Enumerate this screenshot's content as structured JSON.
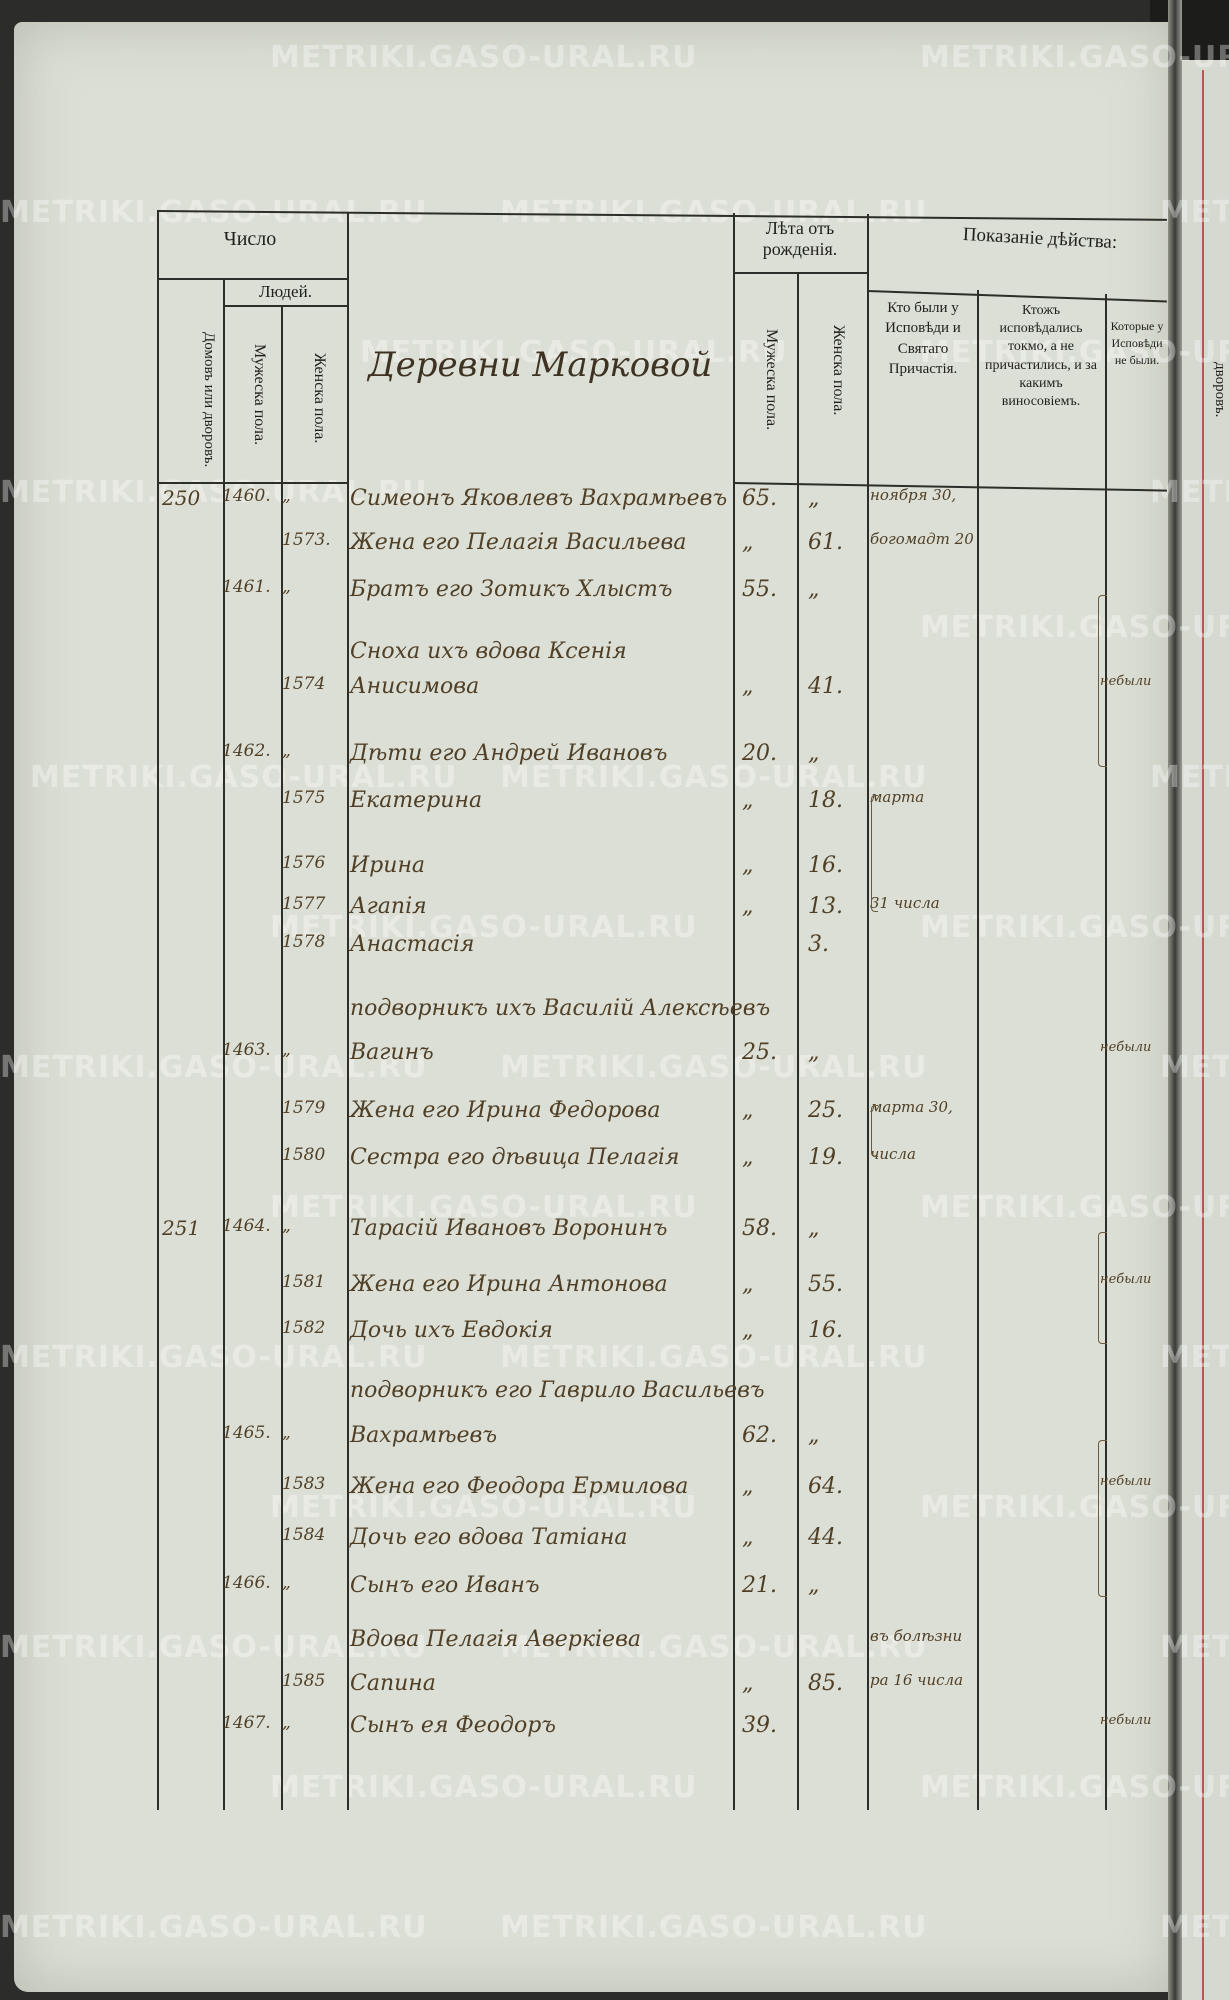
{
  "watermark": "METRIKI.GASO-URAL.RU",
  "header": {
    "chislo": "Число",
    "lyudey": "Людей.",
    "domov": "Домовъ или дворовъ.",
    "muzheska_pola_num": "Мужеска пола.",
    "zhenska_pola_num": "Женска пола.",
    "village": "Деревни Марковой",
    "leta": "Лѣта отъ рожденія.",
    "muzheska_pola_age": "Мужеска пола.",
    "zhenska_pola_age": "Женска пола.",
    "pokazanie": "Показаніе дѣйства:",
    "col_confessed": "Кто были у Исповѣди и Святаго Причастія.",
    "col_confessed_only": "Ктожъ исповѣдались токмо, а не причастились, и за какимъ виносовіемъ.",
    "col_absent": "Которые у Исповѣди не были.",
    "next_page": "дворовъ."
  },
  "rows": [
    {
      "dom": "250",
      "m": "1460.",
      "f": "„",
      "name": "Симеонъ Яковлевъ Вахрамѣевъ",
      "ma": "65.",
      "fa": "„",
      "c1": "ноября 30,",
      "c3": ""
    },
    {
      "dom": "",
      "m": "",
      "f": "1573.",
      "name": "Жена его Пелагія Васильева",
      "ma": "„",
      "fa": "61.",
      "c1": "богомадт 20",
      "c3": ""
    },
    {
      "dom": "",
      "m": "1461.",
      "f": "„",
      "name": "Братъ его Зотикъ Хлыстъ",
      "ma": "55.",
      "fa": "„",
      "c1": "",
      "c3": ""
    },
    {
      "dom": "",
      "m": "",
      "f": "",
      "name": "Сноха ихъ вдова Ксенія",
      "ma": "",
      "fa": "",
      "c1": "",
      "c3": ""
    },
    {
      "dom": "",
      "m": "",
      "f": "1574",
      "name": "Анисимова",
      "ma": "„",
      "fa": "41.",
      "c1": "",
      "c3": "небыли"
    },
    {
      "dom": "",
      "m": "1462.",
      "f": "„",
      "name": "Дѣти его Андрей Ивановъ",
      "ma": "20.",
      "fa": "„",
      "c1": "",
      "c3": ""
    },
    {
      "dom": "",
      "m": "",
      "f": "1575",
      "name": "Екатерина",
      "ma": "„",
      "fa": "18.",
      "c1": "марта",
      "c3": ""
    },
    {
      "dom": "",
      "m": "",
      "f": "1576",
      "name": "Ирина",
      "ma": "„",
      "fa": "16.",
      "c1": "",
      "c3": ""
    },
    {
      "dom": "",
      "m": "",
      "f": "1577",
      "name": "Агапія",
      "ma": "„",
      "fa": "13.",
      "c1": "31 числа",
      "c3": ""
    },
    {
      "dom": "",
      "m": "",
      "f": "1578",
      "name": "Анастасія",
      "ma": "",
      "fa": "3.",
      "c1": "",
      "c3": ""
    },
    {
      "dom": "",
      "m": "",
      "f": "",
      "name": "подворникъ ихъ Василій Алексѣевъ",
      "ma": "",
      "fa": "",
      "c1": "",
      "c3": ""
    },
    {
      "dom": "",
      "m": "1463.",
      "f": "„",
      "name": "Вагинъ",
      "ma": "25.",
      "fa": "„",
      "c1": "",
      "c3": "небыли"
    },
    {
      "dom": "",
      "m": "",
      "f": "1579",
      "name": "Жена его Ирина Федорова",
      "ma": "„",
      "fa": "25.",
      "c1": "марта 30,",
      "c3": ""
    },
    {
      "dom": "",
      "m": "",
      "f": "1580",
      "name": "Сестра его дѣвица Пелагія",
      "ma": "„",
      "fa": "19.",
      "c1": "числа",
      "c3": ""
    },
    {
      "dom": "251",
      "m": "1464.",
      "f": "„",
      "name": "Тарасій Ивановъ Воронинъ",
      "ma": "58.",
      "fa": "„",
      "c1": "",
      "c3": ""
    },
    {
      "dom": "",
      "m": "",
      "f": "1581",
      "name": "Жена его Ирина Антонова",
      "ma": "„",
      "fa": "55.",
      "c1": "",
      "c3": "небыли"
    },
    {
      "dom": "",
      "m": "",
      "f": "1582",
      "name": "Дочь ихъ Евдокія",
      "ma": "„",
      "fa": "16.",
      "c1": "",
      "c3": ""
    },
    {
      "dom": "",
      "m": "",
      "f": "",
      "name": "подворникъ его Гаврило Васильевъ",
      "ma": "",
      "fa": "",
      "c1": "",
      "c3": ""
    },
    {
      "dom": "",
      "m": "1465.",
      "f": "„",
      "name": "Вахрамѣевъ",
      "ma": "62.",
      "fa": "„",
      "c1": "",
      "c3": ""
    },
    {
      "dom": "",
      "m": "",
      "f": "1583",
      "name": "Жена его Феодора Ермилова",
      "ma": "„",
      "fa": "64.",
      "c1": "",
      "c3": "небыли"
    },
    {
      "dom": "",
      "m": "",
      "f": "1584",
      "name": "Дочь его вдова Татіана",
      "ma": "„",
      "fa": "44.",
      "c1": "",
      "c3": ""
    },
    {
      "dom": "",
      "m": "1466.",
      "f": "„",
      "name": "Сынъ его Иванъ",
      "ma": "21.",
      "fa": "„",
      "c1": "",
      "c3": ""
    },
    {
      "dom": "",
      "m": "",
      "f": "",
      "name": "Вдова Пелагія Аверкіева",
      "ma": "",
      "fa": "",
      "c1": "въ болѣзни",
      "c3": ""
    },
    {
      "dom": "",
      "m": "",
      "f": "1585",
      "name": "Сапина",
      "ma": "„",
      "fa": "85.",
      "c1": "ра 16 числа",
      "c3": ""
    },
    {
      "dom": "",
      "m": "1467.",
      "f": "„",
      "name": "Сынъ ея Феодоръ",
      "ma": "39.",
      "fa": "",
      "c1": "",
      "c3": "небыли"
    }
  ]
}
